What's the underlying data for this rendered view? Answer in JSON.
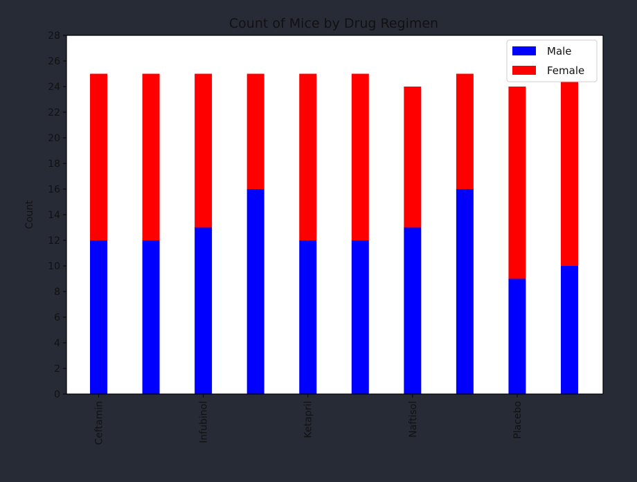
{
  "chart_data": {
    "type": "bar",
    "stacked": true,
    "title": "Count of Mice by Drug Regimen",
    "xlabel": "",
    "ylabel": "Count",
    "ylim": [
      0,
      28
    ],
    "yticks": [
      0,
      2,
      4,
      6,
      8,
      10,
      12,
      14,
      16,
      18,
      20,
      22,
      24,
      26,
      28
    ],
    "categories": [
      "Ceftamin",
      "",
      "Infubinol",
      "",
      "Ketapril",
      "",
      "Naftisol",
      "",
      "Placebo",
      ""
    ],
    "series": [
      {
        "name": "Male",
        "color": "#0000ff",
        "values": [
          12,
          12,
          13,
          16,
          12,
          12,
          13,
          16,
          9,
          10
        ]
      },
      {
        "name": "Female",
        "color": "#ff0000",
        "values": [
          13,
          13,
          12,
          9,
          13,
          13,
          11,
          9,
          15,
          15
        ]
      }
    ],
    "grid": false,
    "legend_position": "top-right"
  }
}
